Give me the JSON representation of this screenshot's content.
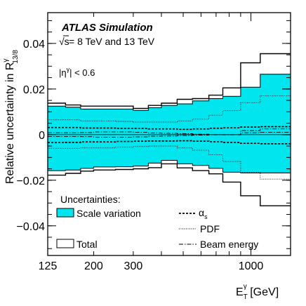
{
  "chart_data": {
    "type": "step",
    "labels": {
      "atlas": "ATLAS",
      "simulation": "Simulation",
      "energy_sqrt": "√s",
      "energy_rest": " = 8 TeV and 13 TeV",
      "eta_cut_pre": "|η",
      "eta_cut_sup": "γ",
      "eta_cut_post": "| < 0.6",
      "ylabel_main": "Relative uncertainty in R",
      "ylabel_sup": "γ",
      "ylabel_sub": "13/8",
      "xlabel_main": "E",
      "xlabel_sub": "T",
      "xlabel_sup": "γ",
      "xlabel_unit": " [GeV]"
    },
    "legend": {
      "header": "Uncertainties:",
      "scale": "Scale variation",
      "total": "Total",
      "alpha_main": "α",
      "alpha_sub": "s",
      "pdf": "PDF",
      "beam": "Beam energy"
    },
    "x_axis": {
      "scale": "log",
      "lim": [
        125,
        1500
      ],
      "tick_labels": [
        {
          "value": 125,
          "label": "125"
        },
        {
          "value": 200,
          "label": "200"
        },
        {
          "value": 300,
          "label": "300"
        },
        {
          "value": 1000,
          "label": "1000"
        }
      ]
    },
    "y_axis": {
      "lim": [
        -0.053,
        0.0535
      ],
      "tick_labels": [
        {
          "value": -0.04,
          "label": "−0.04"
        },
        {
          "value": -0.02,
          "label": "−0.02"
        },
        {
          "value": 0,
          "label": "0"
        },
        {
          "value": 0.02,
          "label": "0.02"
        },
        {
          "value": 0.04,
          "label": "0.04"
        }
      ]
    },
    "bin_edges": [
      125,
      150,
      175,
      200,
      250,
      300,
      350,
      400,
      470,
      550,
      650,
      750,
      900,
      1100,
      1500
    ],
    "scale_band": {
      "upper": [
        0.0125,
        0.012,
        0.0112,
        0.0112,
        0.0112,
        0.0106,
        0.0118,
        0.0128,
        0.0135,
        0.0148,
        0.0158,
        0.0168,
        0.0208,
        0.0265
      ],
      "lower": [
        -0.0158,
        -0.0155,
        -0.0148,
        -0.0142,
        -0.0141,
        -0.0138,
        -0.0125,
        -0.0113,
        -0.0128,
        -0.0135,
        -0.0148,
        -0.0165,
        -0.0168,
        -0.0168
      ]
    },
    "total": {
      "upper": [
        0.0138,
        0.013,
        0.0125,
        0.0125,
        0.0125,
        0.0115,
        0.0128,
        0.0138,
        0.0155,
        0.0158,
        0.0173,
        0.0205,
        0.0315,
        0.0355
      ],
      "lower": [
        -0.0178,
        -0.017,
        -0.016,
        -0.0155,
        -0.0153,
        -0.015,
        -0.0145,
        -0.0128,
        -0.0146,
        -0.0158,
        -0.0172,
        -0.0208,
        -0.0268,
        -0.0312
      ]
    },
    "alpha_s": {
      "upper": [
        0.0031,
        0.0031,
        0.0029,
        0.0029,
        0.0027,
        0.0027,
        0.0025,
        0.0025,
        0.0023,
        0.0025,
        0.0028,
        0.003,
        0.0033,
        0.0035
      ],
      "lower": [
        -0.0035,
        -0.0034,
        -0.0032,
        -0.0032,
        -0.003,
        -0.0029,
        -0.0028,
        -0.0028,
        -0.0027,
        -0.0029,
        -0.0031,
        -0.0034,
        -0.0038,
        -0.004
      ]
    },
    "pdf": {
      "upper": [
        0.0065,
        0.0065,
        0.006,
        0.006,
        0.0058,
        0.0055,
        0.0055,
        0.0055,
        0.006,
        0.0068,
        0.0085,
        0.0105,
        0.014,
        0.017
      ],
      "lower": [
        -0.006,
        -0.006,
        -0.0058,
        -0.0058,
        -0.0055,
        -0.0052,
        -0.005,
        -0.005,
        -0.0058,
        -0.0068,
        -0.0088,
        -0.0118,
        -0.0165,
        -0.0195
      ]
    },
    "beam_energy": {
      "upper": [
        0.0008,
        0.0008,
        0.0009,
        0.0012,
        0.0012,
        0.001,
        0.0007,
        0.0006,
        0.0004,
        0.0002,
        0.0,
        0.0,
        0.0018,
        0.0025
      ],
      "lower": [
        -0.0008,
        -0.0008,
        -0.0009,
        -0.0011,
        -0.0011,
        -0.001,
        -0.0007,
        -0.0006,
        -0.0004,
        -0.0002,
        0.0,
        0.0,
        0.0008,
        0.001
      ]
    },
    "colors": {
      "scale_fill": "#00e5ee",
      "line": "#000000",
      "background": "#ffffff"
    },
    "grid": false
  }
}
